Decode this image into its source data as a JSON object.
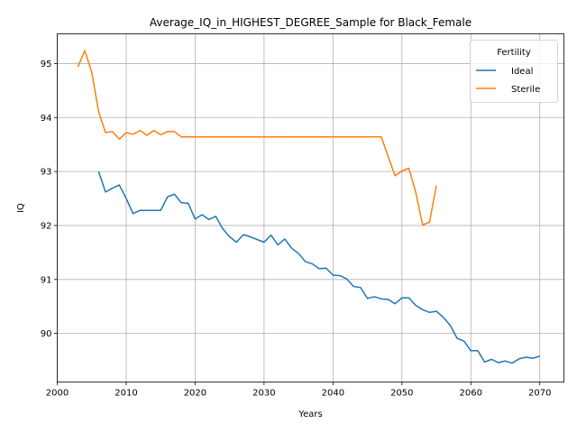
{
  "chart_data": {
    "type": "line",
    "title": "Average_IQ_in_HIGHEST_DEGREE_Sample for Black_Female",
    "xlabel": "Years",
    "ylabel": "IQ",
    "xlim": [
      2000,
      2073.5
    ],
    "ylim": [
      89.1,
      95.55
    ],
    "xticks": [
      2000,
      2010,
      2020,
      2030,
      2040,
      2050,
      2060,
      2070
    ],
    "yticks": [
      90,
      91,
      92,
      93,
      94,
      95
    ],
    "grid": true,
    "legend": {
      "title": "Fertility",
      "placement": "top-right"
    },
    "series": [
      {
        "name": "Ideal",
        "color": "#1f77b4",
        "x": [
          2006,
          2007,
          2008,
          2009,
          2010,
          2011,
          2012,
          2013,
          2014,
          2015,
          2016,
          2017,
          2018,
          2019,
          2020,
          2021,
          2022,
          2023,
          2024,
          2025,
          2026,
          2027,
          2028,
          2029,
          2030,
          2031,
          2032,
          2033,
          2034,
          2035,
          2036,
          2037,
          2038,
          2039,
          2040,
          2041,
          2042,
          2043,
          2044,
          2045,
          2046,
          2047,
          2048,
          2049,
          2050,
          2051,
          2052,
          2053,
          2054,
          2055,
          2056,
          2057,
          2058,
          2059,
          2060,
          2061,
          2062,
          2063,
          2064,
          2065,
          2066,
          2067,
          2068,
          2069,
          2070
        ],
        "y": [
          93.0,
          92.62,
          92.69,
          92.75,
          92.5,
          92.22,
          92.28,
          92.28,
          92.28,
          92.28,
          92.53,
          92.58,
          92.42,
          92.41,
          92.12,
          92.2,
          92.11,
          92.17,
          91.94,
          91.79,
          91.69,
          91.83,
          91.79,
          91.74,
          91.69,
          91.82,
          91.64,
          91.75,
          91.58,
          91.48,
          91.33,
          91.29,
          91.2,
          91.21,
          91.08,
          91.07,
          91.01,
          90.87,
          90.85,
          90.65,
          90.68,
          90.64,
          90.63,
          90.55,
          90.66,
          90.66,
          90.52,
          90.44,
          90.39,
          90.41,
          90.3,
          90.15,
          89.91,
          89.86,
          89.68,
          89.68,
          89.47,
          89.52,
          89.46,
          89.49,
          89.45,
          89.53,
          89.56,
          89.54,
          89.58
        ]
      },
      {
        "name": "Sterile",
        "color": "#ff7f0e",
        "x": [
          2003,
          2004,
          2005,
          2006,
          2007,
          2008,
          2009,
          2010,
          2011,
          2012,
          2013,
          2014,
          2015,
          2016,
          2017,
          2018,
          2019,
          2020,
          2021,
          2022,
          2023,
          2024,
          2025,
          2026,
          2027,
          2028,
          2029,
          2030,
          2031,
          2032,
          2033,
          2034,
          2035,
          2036,
          2037,
          2038,
          2039,
          2040,
          2041,
          2042,
          2043,
          2044,
          2045,
          2046,
          2047,
          2048,
          2049,
          2050,
          2051,
          2052,
          2053,
          2054,
          2055
        ],
        "y": [
          94.94,
          95.24,
          94.84,
          94.11,
          93.72,
          93.74,
          93.6,
          93.72,
          93.69,
          93.76,
          93.67,
          93.76,
          93.68,
          93.74,
          93.74,
          93.64,
          93.64,
          93.64,
          93.64,
          93.64,
          93.64,
          93.64,
          93.64,
          93.64,
          93.64,
          93.64,
          93.64,
          93.64,
          93.64,
          93.64,
          93.64,
          93.64,
          93.64,
          93.64,
          93.64,
          93.64,
          93.64,
          93.64,
          93.64,
          93.64,
          93.64,
          93.64,
          93.64,
          93.64,
          93.64,
          93.28,
          92.92,
          93.01,
          93.06,
          92.62,
          92.01,
          92.06,
          92.74
        ]
      }
    ]
  }
}
